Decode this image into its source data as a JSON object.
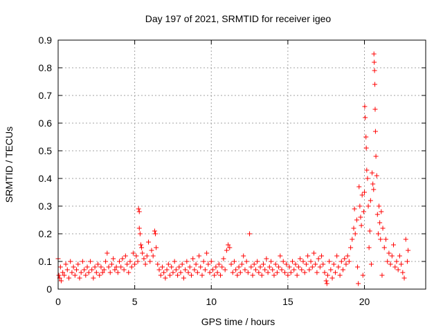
{
  "chart_data": {
    "type": "scatter",
    "title": "Day 197 of 2021, SRMTID for receiver igeo",
    "xlabel": "GPS time / hours",
    "ylabel": "SRMTID / TECUs",
    "xlim": [
      0,
      24
    ],
    "ylim": [
      0,
      0.9
    ],
    "xticks": [
      0,
      5,
      10,
      15,
      20
    ],
    "yticks": [
      0,
      0.1,
      0.2,
      0.3,
      0.4,
      0.5,
      0.6,
      0.7,
      0.8,
      0.9
    ],
    "grid": true,
    "marker": "+",
    "marker_color": "#ff0000",
    "series": [
      {
        "name": "SRMTID",
        "points": [
          [
            0.0,
            0.11
          ],
          [
            0.05,
            0.05
          ],
          [
            0.1,
            0.04
          ],
          [
            0.15,
            0.08
          ],
          [
            0.2,
            0.03
          ],
          [
            0.3,
            0.06
          ],
          [
            0.4,
            0.05
          ],
          [
            0.5,
            0.09
          ],
          [
            0.6,
            0.07
          ],
          [
            0.7,
            0.04
          ],
          [
            0.8,
            0.1
          ],
          [
            0.9,
            0.06
          ],
          [
            1.0,
            0.08
          ],
          [
            1.1,
            0.05
          ],
          [
            1.2,
            0.07
          ],
          [
            1.3,
            0.09
          ],
          [
            1.4,
            0.04
          ],
          [
            1.5,
            0.06
          ],
          [
            1.6,
            0.1
          ],
          [
            1.7,
            0.07
          ],
          [
            1.8,
            0.05
          ],
          [
            1.9,
            0.08
          ],
          [
            2.0,
            0.06
          ],
          [
            2.1,
            0.1
          ],
          [
            2.2,
            0.07
          ],
          [
            2.3,
            0.04
          ],
          [
            2.4,
            0.08
          ],
          [
            2.5,
            0.06
          ],
          [
            2.6,
            0.09
          ],
          [
            2.7,
            0.05
          ],
          [
            2.8,
            0.08
          ],
          [
            2.9,
            0.06
          ],
          [
            3.0,
            0.07
          ],
          [
            3.1,
            0.1
          ],
          [
            3.2,
            0.13
          ],
          [
            3.3,
            0.08
          ],
          [
            3.4,
            0.06
          ],
          [
            3.5,
            0.09
          ],
          [
            3.6,
            0.11
          ],
          [
            3.7,
            0.07
          ],
          [
            3.8,
            0.08
          ],
          [
            3.9,
            0.06
          ],
          [
            4.0,
            0.1
          ],
          [
            4.1,
            0.08
          ],
          [
            4.2,
            0.11
          ],
          [
            4.3,
            0.07
          ],
          [
            4.4,
            0.12
          ],
          [
            4.5,
            0.09
          ],
          [
            4.6,
            0.06
          ],
          [
            4.7,
            0.1
          ],
          [
            4.8,
            0.08
          ],
          [
            4.9,
            0.13
          ],
          [
            5.0,
            0.09
          ],
          [
            5.1,
            0.12
          ],
          [
            5.2,
            0.1
          ],
          [
            5.25,
            0.29
          ],
          [
            5.3,
            0.28
          ],
          [
            5.3,
            0.22
          ],
          [
            5.35,
            0.2
          ],
          [
            5.4,
            0.16
          ],
          [
            5.45,
            0.15
          ],
          [
            5.5,
            0.13
          ],
          [
            5.6,
            0.11
          ],
          [
            5.7,
            0.09
          ],
          [
            5.8,
            0.12
          ],
          [
            5.9,
            0.17
          ],
          [
            6.0,
            0.1
          ],
          [
            6.1,
            0.14
          ],
          [
            6.2,
            0.12
          ],
          [
            6.3,
            0.21
          ],
          [
            6.35,
            0.2
          ],
          [
            6.4,
            0.15
          ],
          [
            6.5,
            0.09
          ],
          [
            6.6,
            0.07
          ],
          [
            6.7,
            0.05
          ],
          [
            6.8,
            0.08
          ],
          [
            6.9,
            0.06
          ],
          [
            7.0,
            0.04
          ],
          [
            7.1,
            0.07
          ],
          [
            7.2,
            0.09
          ],
          [
            7.3,
            0.05
          ],
          [
            7.4,
            0.08
          ],
          [
            7.5,
            0.06
          ],
          [
            7.6,
            0.1
          ],
          [
            7.7,
            0.07
          ],
          [
            7.8,
            0.05
          ],
          [
            7.9,
            0.08
          ],
          [
            8.0,
            0.06
          ],
          [
            8.1,
            0.09
          ],
          [
            8.2,
            0.04
          ],
          [
            8.3,
            0.07
          ],
          [
            8.4,
            0.1
          ],
          [
            8.5,
            0.06
          ],
          [
            8.6,
            0.08
          ],
          [
            8.7,
            0.05
          ],
          [
            8.8,
            0.11
          ],
          [
            8.9,
            0.07
          ],
          [
            9.0,
            0.09
          ],
          [
            9.1,
            0.06
          ],
          [
            9.2,
            0.12
          ],
          [
            9.3,
            0.08
          ],
          [
            9.4,
            0.05
          ],
          [
            9.5,
            0.1
          ],
          [
            9.6,
            0.07
          ],
          [
            9.7,
            0.13
          ],
          [
            9.8,
            0.09
          ],
          [
            9.9,
            0.06
          ],
          [
            10.0,
            0.1
          ],
          [
            10.1,
            0.07
          ],
          [
            10.2,
            0.05
          ],
          [
            10.3,
            0.08
          ],
          [
            10.4,
            0.06
          ],
          [
            10.5,
            0.09
          ],
          [
            10.6,
            0.05
          ],
          [
            10.7,
            0.08
          ],
          [
            10.8,
            0.11
          ],
          [
            10.9,
            0.07
          ],
          [
            11.0,
            0.14
          ],
          [
            11.1,
            0.16
          ],
          [
            11.2,
            0.15
          ],
          [
            11.3,
            0.09
          ],
          [
            11.4,
            0.06
          ],
          [
            11.5,
            0.1
          ],
          [
            11.6,
            0.07
          ],
          [
            11.7,
            0.05
          ],
          [
            11.8,
            0.08
          ],
          [
            11.9,
            0.06
          ],
          [
            12.0,
            0.09
          ],
          [
            12.1,
            0.12
          ],
          [
            12.2,
            0.07
          ],
          [
            12.3,
            0.1
          ],
          [
            12.4,
            0.06
          ],
          [
            12.5,
            0.2
          ],
          [
            12.6,
            0.08
          ],
          [
            12.7,
            0.05
          ],
          [
            12.8,
            0.09
          ],
          [
            12.9,
            0.07
          ],
          [
            13.0,
            0.1
          ],
          [
            13.1,
            0.06
          ],
          [
            13.2,
            0.08
          ],
          [
            13.3,
            0.05
          ],
          [
            13.4,
            0.09
          ],
          [
            13.5,
            0.07
          ],
          [
            13.6,
            0.11
          ],
          [
            13.7,
            0.06
          ],
          [
            13.8,
            0.08
          ],
          [
            13.9,
            0.1
          ],
          [
            14.0,
            0.07
          ],
          [
            14.1,
            0.05
          ],
          [
            14.2,
            0.09
          ],
          [
            14.3,
            0.06
          ],
          [
            14.4,
            0.08
          ],
          [
            14.5,
            0.12
          ],
          [
            14.6,
            0.07
          ],
          [
            14.7,
            0.1
          ],
          [
            14.8,
            0.06
          ],
          [
            14.9,
            0.09
          ],
          [
            15.0,
            0.05
          ],
          [
            15.1,
            0.08
          ],
          [
            15.2,
            0.06
          ],
          [
            15.3,
            0.1
          ],
          [
            15.4,
            0.07
          ],
          [
            15.5,
            0.09
          ],
          [
            15.6,
            0.05
          ],
          [
            15.7,
            0.08
          ],
          [
            15.8,
            0.11
          ],
          [
            15.9,
            0.07
          ],
          [
            16.0,
            0.1
          ],
          [
            16.1,
            0.06
          ],
          [
            16.2,
            0.09
          ],
          [
            16.3,
            0.12
          ],
          [
            16.4,
            0.07
          ],
          [
            16.5,
            0.1
          ],
          [
            16.6,
            0.08
          ],
          [
            16.7,
            0.13
          ],
          [
            16.8,
            0.09
          ],
          [
            16.9,
            0.06
          ],
          [
            17.0,
            0.11
          ],
          [
            17.1,
            0.08
          ],
          [
            17.2,
            0.12
          ],
          [
            17.3,
            0.09
          ],
          [
            17.4,
            0.06
          ],
          [
            17.5,
            0.03
          ],
          [
            17.55,
            0.02
          ],
          [
            17.6,
            0.05
          ],
          [
            17.7,
            0.1
          ],
          [
            17.8,
            0.07
          ],
          [
            17.9,
            0.04
          ],
          [
            18.0,
            0.09
          ],
          [
            18.1,
            0.06
          ],
          [
            18.2,
            0.12
          ],
          [
            18.3,
            0.08
          ],
          [
            18.4,
            0.05
          ],
          [
            18.5,
            0.1
          ],
          [
            18.6,
            0.07
          ],
          [
            18.7,
            0.11
          ],
          [
            18.8,
            0.09
          ],
          [
            18.9,
            0.12
          ],
          [
            19.0,
            0.1
          ],
          [
            19.1,
            0.15
          ],
          [
            19.2,
            0.18
          ],
          [
            19.3,
            0.22
          ],
          [
            19.35,
            0.29
          ],
          [
            19.4,
            0.2
          ],
          [
            19.5,
            0.25
          ],
          [
            19.55,
            0.08
          ],
          [
            19.6,
            0.02
          ],
          [
            19.65,
            0.37
          ],
          [
            19.7,
            0.3
          ],
          [
            19.75,
            0.26
          ],
          [
            19.8,
            0.23
          ],
          [
            19.85,
            0.34
          ],
          [
            19.9,
            0.05
          ],
          [
            19.95,
            0.28
          ],
          [
            20.0,
            0.35
          ],
          [
            20.02,
            0.66
          ],
          [
            20.05,
            0.62
          ],
          [
            20.1,
            0.55
          ],
          [
            20.12,
            0.51
          ],
          [
            20.15,
            0.43
          ],
          [
            20.2,
            0.4
          ],
          [
            20.25,
            0.3
          ],
          [
            20.3,
            0.15
          ],
          [
            20.35,
            0.21
          ],
          [
            20.4,
            0.32
          ],
          [
            20.45,
            0.09
          ],
          [
            20.5,
            0.42
          ],
          [
            20.55,
            0.38
          ],
          [
            20.6,
            0.36
          ],
          [
            20.62,
            0.85
          ],
          [
            20.64,
            0.82
          ],
          [
            20.66,
            0.79
          ],
          [
            20.68,
            0.74
          ],
          [
            20.7,
            0.65
          ],
          [
            20.72,
            0.57
          ],
          [
            20.75,
            0.48
          ],
          [
            20.8,
            0.41
          ],
          [
            20.85,
            0.27
          ],
          [
            20.9,
            0.2
          ],
          [
            20.95,
            0.3
          ],
          [
            21.0,
            0.24
          ],
          [
            21.05,
            0.18
          ],
          [
            21.1,
            0.28
          ],
          [
            21.15,
            0.05
          ],
          [
            21.2,
            0.22
          ],
          [
            21.3,
            0.15
          ],
          [
            21.4,
            0.18
          ],
          [
            21.5,
            0.1
          ],
          [
            21.6,
            0.13
          ],
          [
            21.7,
            0.09
          ],
          [
            21.8,
            0.12
          ],
          [
            21.9,
            0.16
          ],
          [
            22.0,
            0.08
          ],
          [
            22.1,
            0.1
          ],
          [
            22.2,
            0.07
          ],
          [
            22.3,
            0.12
          ],
          [
            22.4,
            0.09
          ],
          [
            22.5,
            0.06
          ],
          [
            22.6,
            0.04
          ],
          [
            22.7,
            0.18
          ],
          [
            22.8,
            0.1
          ],
          [
            22.85,
            0.14
          ]
        ]
      }
    ]
  }
}
